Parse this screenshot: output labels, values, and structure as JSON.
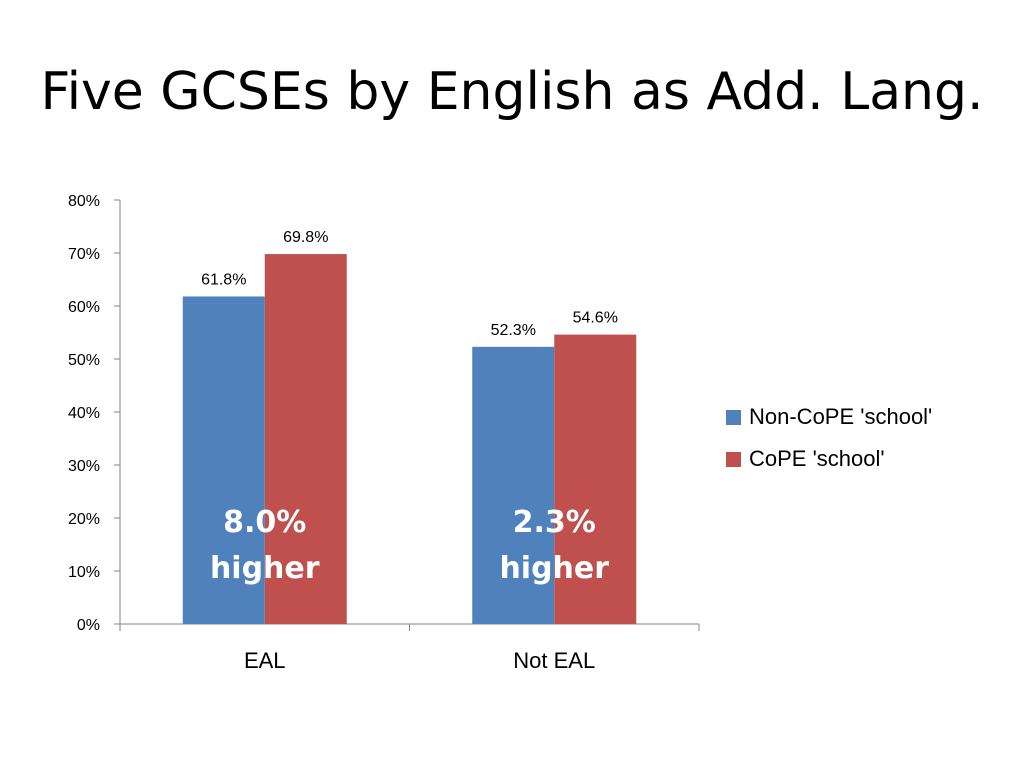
{
  "slide": {
    "title": "Five GCSEs by English as Add. Lang."
  },
  "chart_data": {
    "type": "bar",
    "title": "",
    "xlabel": "",
    "ylabel": "",
    "categories": [
      "EAL",
      "Not EAL"
    ],
    "series": [
      {
        "name": "Non-CoPE 'school'",
        "values": [
          61.8,
          52.3
        ],
        "labels": [
          "61.8%",
          "52.3%"
        ],
        "color": "#4F81BD"
      },
      {
        "name": "CoPE 'school'",
        "values": [
          69.8,
          54.6
        ],
        "labels": [
          "69.8%",
          "54.6%"
        ],
        "color": "#C0504D"
      }
    ],
    "ylim": [
      0,
      80
    ],
    "yticks": [
      "0%",
      "10%",
      "20%",
      "30%",
      "40%",
      "50%",
      "60%",
      "70%",
      "80%"
    ],
    "grid": false,
    "legend_position": "right",
    "annotations": [
      {
        "category": "EAL",
        "lines": [
          "8.0%",
          "higher"
        ]
      },
      {
        "category": "Not EAL",
        "lines": [
          "2.3%",
          "higher"
        ]
      }
    ]
  }
}
